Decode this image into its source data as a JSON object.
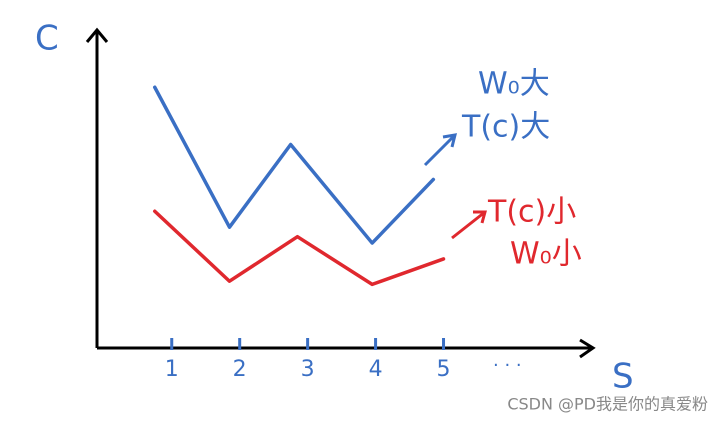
{
  "chart_data": {
    "type": "line",
    "x_label": "S",
    "y_label": "C",
    "xlim": [
      -0.1,
      7.2
    ],
    "ylim": [
      0,
      10
    ],
    "xticks": [
      1,
      2,
      3,
      4,
      5
    ],
    "series": [
      {
        "color": "#3a6fc4",
        "x": [
          0.75,
          1.85,
          2.75,
          3.95,
          4.85
        ],
        "values": [
          8.2,
          3.8,
          6.4,
          3.3,
          5.3
        ]
      },
      {
        "color": "#e0282e",
        "x": [
          0.75,
          1.85,
          2.85,
          3.95,
          5.0
        ],
        "values": [
          4.3,
          2.1,
          3.5,
          2.0,
          2.8
        ]
      }
    ],
    "annotations": [
      "W₀大",
      "T(c)大",
      "T(c)小",
      "W₀小",
      "· · ·"
    ],
    "watermark": "CSDN @PD我是你的真爱粉"
  }
}
